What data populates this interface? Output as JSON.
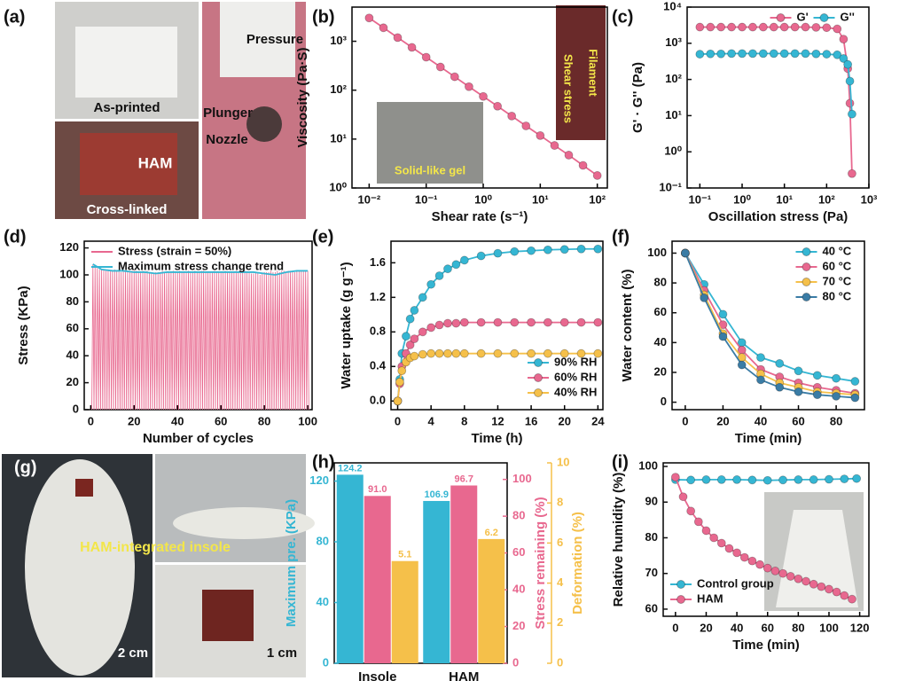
{
  "photo_panels": [
    {
      "panel_label": "(a)",
      "labels": [
        "As-printed",
        "HAM",
        "Cross-linked",
        "Pressure",
        "Plunger",
        "Nozzle"
      ]
    },
    {
      "panel_label": "(g)",
      "labels": [
        "HAM-integrated insole",
        "2 cm",
        "1 cm"
      ]
    }
  ],
  "chart_data": [
    {
      "panel_label": "(b)",
      "type": "line",
      "xlabel": "Shear rate (s⁻¹)",
      "ylabel": "Viscosity (Pa·S)",
      "xlog": true,
      "ylog": true,
      "xlim": [
        0.005,
        150
      ],
      "ylim": [
        1,
        5000
      ],
      "xticks": [
        {
          "value": 0.01,
          "label": "10⁻²"
        },
        {
          "value": 0.1,
          "label": "10⁻¹"
        },
        {
          "value": 1,
          "label": "10⁰"
        },
        {
          "value": 10,
          "label": "10¹"
        },
        {
          "value": 100,
          "label": "10²"
        }
      ],
      "yticks": [
        {
          "value": 1,
          "label": "10⁰"
        },
        {
          "value": 10,
          "label": "10¹"
        },
        {
          "value": 100,
          "label": "10²"
        },
        {
          "value": 1000,
          "label": "10³"
        }
      ],
      "x": [
        0.01,
        0.0178,
        0.0316,
        0.0562,
        0.1,
        0.178,
        0.316,
        0.562,
        1,
        1.78,
        3.16,
        5.62,
        10,
        17.8,
        31.6,
        56.2,
        100
      ],
      "series": [
        {
          "color": "#e8688f",
          "values": [
            3000,
            1890,
            1190,
            751,
            473,
            298,
            188,
            118,
            74.5,
            47,
            29.6,
            18.6,
            11.8,
            7.4,
            4.7,
            2.9,
            1.8
          ]
        }
      ],
      "annotations": [
        "Solid-like gel",
        "Filament",
        "Shear stress"
      ]
    },
    {
      "panel_label": "(c)",
      "type": "line",
      "xlabel": "Oscillation stress (Pa)",
      "ylabel": "G' · G'' (Pa)",
      "xlog": true,
      "ylog": true,
      "xlim": [
        0.05,
        1000
      ],
      "ylim": [
        0.1,
        10000
      ],
      "legend": "upper right",
      "legend_orientation": "horizontal",
      "xticks": [
        {
          "value": 0.1,
          "label": "10⁻¹"
        },
        {
          "value": 1,
          "label": "10⁰"
        },
        {
          "value": 10,
          "label": "10¹"
        },
        {
          "value": 100,
          "label": "10²"
        },
        {
          "value": 1000,
          "label": "10³"
        }
      ],
      "yticks": [
        {
          "value": 0.1,
          "label": "10⁻¹"
        },
        {
          "value": 1,
          "label": "10⁰"
        },
        {
          "value": 10,
          "label": "10¹"
        },
        {
          "value": 100,
          "label": "10²"
        },
        {
          "value": 1000,
          "label": "10³"
        },
        {
          "value": 10000,
          "label": "10⁴"
        }
      ],
      "x": [
        0.1,
        0.178,
        0.316,
        0.562,
        1,
        1.78,
        3.16,
        5.62,
        10,
        17.8,
        31.6,
        56.2,
        100,
        178,
        251,
        316,
        355,
        398
      ],
      "series": [
        {
          "name": "G'",
          "color": "#e8688f",
          "values": [
            2800,
            2800,
            2800,
            2800,
            2800,
            2800,
            2800,
            2800,
            2800,
            2800,
            2800,
            2750,
            2700,
            2500,
            1300,
            200,
            22,
            0.25
          ]
        },
        {
          "name": "G''",
          "color": "#35b6d3",
          "values": [
            500,
            510,
            510,
            520,
            520,
            520,
            520,
            520,
            520,
            520,
            520,
            510,
            500,
            480,
            380,
            260,
            90,
            11
          ]
        }
      ]
    },
    {
      "panel_label": "(d)",
      "type": "line",
      "xlabel": "Number of cycles",
      "ylabel": "Stress (KPa)",
      "xlim": [
        -3,
        102
      ],
      "ylim": [
        0,
        125
      ],
      "xticks": [
        0,
        20,
        40,
        60,
        80,
        100
      ],
      "yticks": [
        0,
        20,
        40,
        60,
        80,
        100,
        120
      ],
      "legend": "upper left",
      "series": [
        {
          "name": "Stress (strain = 50%)",
          "color": "#e8688f",
          "style": "spikes",
          "x": [
            1,
            2,
            3,
            4,
            5,
            6,
            7,
            8,
            9,
            10,
            11,
            12,
            13,
            14,
            15,
            16,
            17,
            18,
            19,
            20,
            21,
            22,
            23,
            24,
            25,
            26,
            27,
            28,
            29,
            30,
            31,
            32,
            33,
            34,
            35,
            36,
            37,
            38,
            39,
            40,
            41,
            42,
            43,
            44,
            45,
            46,
            47,
            48,
            49,
            50,
            51,
            52,
            53,
            54,
            55,
            56,
            57,
            58,
            59,
            60,
            61,
            62,
            63,
            64,
            65,
            66,
            67,
            68,
            69,
            70,
            71,
            72,
            73,
            74,
            75,
            76,
            77,
            78,
            79,
            80,
            81,
            82,
            83,
            84,
            85,
            86,
            87,
            88,
            89,
            90,
            91,
            92,
            93,
            94,
            95,
            96,
            97,
            98,
            99,
            100
          ],
          "values": [
            108,
            106,
            105,
            104,
            104,
            104,
            103,
            104,
            103,
            103,
            104,
            103,
            103,
            102,
            103,
            103,
            103,
            102,
            103,
            103,
            103,
            102,
            102,
            103,
            102,
            103,
            102,
            102,
            101,
            102,
            102,
            102,
            103,
            102,
            102,
            102,
            102,
            103,
            102,
            102,
            103,
            102,
            102,
            102,
            103,
            102,
            102,
            103,
            102,
            102,
            103,
            103,
            102,
            102,
            102,
            102,
            103,
            102,
            102,
            102,
            102,
            103,
            102,
            102,
            102,
            102,
            103,
            102,
            102,
            102,
            103,
            102,
            102,
            101,
            101,
            102,
            101,
            100,
            101,
            102,
            102,
            102,
            103,
            102,
            102,
            103,
            102,
            103,
            103,
            102,
            103,
            103,
            103,
            102,
            103,
            103,
            103,
            103,
            103,
            103
          ]
        },
        {
          "name": "Maximum stress change trend",
          "color": "#35b6d3",
          "marker": false,
          "x": [
            1,
            5,
            10,
            15,
            20,
            25,
            30,
            35,
            40,
            45,
            50,
            55,
            60,
            65,
            70,
            75,
            80,
            85,
            90,
            95,
            100
          ],
          "values": [
            108,
            104,
            103,
            103,
            102,
            102,
            101,
            102,
            102,
            102,
            102,
            102,
            102,
            102,
            102,
            102,
            101,
            100,
            102,
            103,
            103
          ]
        }
      ]
    },
    {
      "panel_label": "(e)",
      "type": "line",
      "xlabel": "Time (h)",
      "ylabel": "Water uptake (g g⁻¹)",
      "xlim": [
        -0.8,
        24.6
      ],
      "ylim": [
        -0.1,
        1.85
      ],
      "xticks": [
        0,
        4,
        8,
        12,
        16,
        20,
        24
      ],
      "yticks": [
        {
          "value": 0,
          "label": "0.0"
        },
        0.4,
        0.8,
        1.2,
        1.6
      ],
      "legend": "lower right",
      "x": [
        0,
        0.25,
        0.5,
        1,
        1.5,
        2,
        3,
        4,
        5,
        6,
        7,
        8,
        10,
        12,
        14,
        16,
        18,
        20,
        22,
        24
      ],
      "series": [
        {
          "name": "90% RH",
          "color": "#35b6d3",
          "values": [
            0,
            0.25,
            0.55,
            0.75,
            0.95,
            1.05,
            1.2,
            1.35,
            1.45,
            1.53,
            1.58,
            1.63,
            1.68,
            1.71,
            1.73,
            1.74,
            1.75,
            1.755,
            1.76,
            1.76
          ]
        },
        {
          "name": "60% RH",
          "color": "#e8688f",
          "values": [
            0,
            0.2,
            0.4,
            0.55,
            0.65,
            0.72,
            0.8,
            0.85,
            0.88,
            0.9,
            0.9,
            0.91,
            0.91,
            0.91,
            0.91,
            0.91,
            0.91,
            0.91,
            0.91,
            0.91
          ]
        },
        {
          "name": "40% RH",
          "color": "#f5c04a",
          "values": [
            0,
            0.22,
            0.35,
            0.45,
            0.5,
            0.52,
            0.54,
            0.55,
            0.55,
            0.55,
            0.55,
            0.55,
            0.55,
            0.55,
            0.55,
            0.55,
            0.55,
            0.55,
            0.55,
            0.55
          ]
        }
      ]
    },
    {
      "panel_label": "(f)",
      "type": "line",
      "xlabel": "Time (min)",
      "ylabel": "Water content (%)",
      "xlim": [
        -7,
        95
      ],
      "ylim": [
        -5,
        108
      ],
      "xticks": [
        0,
        20,
        40,
        60,
        80
      ],
      "yticks": [
        0,
        20,
        40,
        60,
        80,
        100
      ],
      "legend": "upper right",
      "x": [
        0,
        10,
        20,
        30,
        40,
        50,
        60,
        70,
        80,
        90
      ],
      "series": [
        {
          "name": "40 °C",
          "color": "#35b6d3",
          "values": [
            100,
            79,
            59,
            40,
            30,
            26,
            21,
            18,
            16,
            14
          ]
        },
        {
          "name": "60 °C",
          "color": "#e8688f",
          "values": [
            100,
            75,
            52,
            35,
            22,
            17,
            13,
            10,
            8,
            6
          ]
        },
        {
          "name": "70 °C",
          "color": "#f5c04a",
          "values": [
            100,
            72,
            46,
            30,
            19,
            13,
            10,
            7,
            6,
            5
          ]
        },
        {
          "name": "80 °C",
          "color": "#3a7ca5",
          "values": [
            100,
            70,
            44,
            25,
            15,
            10,
            7,
            5,
            4,
            3
          ]
        }
      ]
    },
    {
      "panel_label": "(h)",
      "type": "bar",
      "categories": [
        "Insole",
        "HAM"
      ],
      "ylabel": "Maximum pre. (KPa)",
      "y2label": "Stress remaining (%)",
      "y3label": "Deformation (%)",
      "ylim": [
        0,
        132
      ],
      "yticks": [
        0,
        40,
        80,
        120
      ],
      "y2lim": [
        0,
        109
      ],
      "y2ticks": [
        0,
        20,
        40,
        60,
        80,
        100
      ],
      "y3lim": [
        0,
        10
      ],
      "y3ticks": [
        0,
        2,
        4,
        6,
        8,
        10
      ],
      "series": [
        {
          "color": "#35b6d3",
          "axis": "y",
          "values": [
            124.2,
            106.9
          ]
        },
        {
          "color": "#e8688f",
          "axis": "y2",
          "values": [
            91,
            96.7
          ],
          "value_labels": [
            "91.0",
            "96.7"
          ]
        },
        {
          "color": "#f5c04a",
          "axis": "y3",
          "values": [
            5.1,
            6.2
          ]
        }
      ]
    },
    {
      "panel_label": "(i)",
      "type": "line",
      "xlabel": "Time (min)",
      "ylabel": "Relative humidity (%)",
      "xlim": [
        -8,
        126
      ],
      "ylim": [
        58,
        101
      ],
      "xticks": [
        0,
        20,
        40,
        60,
        80,
        100,
        120
      ],
      "yticks": [
        60,
        70,
        80,
        90,
        100
      ],
      "legend": "lower left",
      "series": [
        {
          "name": "Control group",
          "color": "#35b6d3",
          "x": [
            0,
            10,
            20,
            30,
            40,
            50,
            60,
            70,
            80,
            90,
            100,
            110,
            118
          ],
          "values": [
            96.3,
            96.2,
            96.3,
            96.3,
            96.3,
            96.2,
            96.1,
            96.2,
            96.3,
            96.3,
            96.4,
            96.5,
            96.6
          ]
        },
        {
          "name": "HAM",
          "color": "#e8688f",
          "x": [
            0,
            5,
            10,
            15,
            20,
            25,
            30,
            35,
            40,
            45,
            50,
            55,
            60,
            65,
            70,
            75,
            80,
            85,
            90,
            95,
            100,
            105,
            110,
            115
          ],
          "values": [
            97,
            91.5,
            87.5,
            84.5,
            82,
            80,
            78.5,
            77,
            75.8,
            74.5,
            73.5,
            72.5,
            71.5,
            70.7,
            70,
            69.2,
            68.5,
            67.8,
            67,
            66.3,
            65.6,
            64.8,
            63.8,
            62.8
          ]
        }
      ]
    }
  ]
}
